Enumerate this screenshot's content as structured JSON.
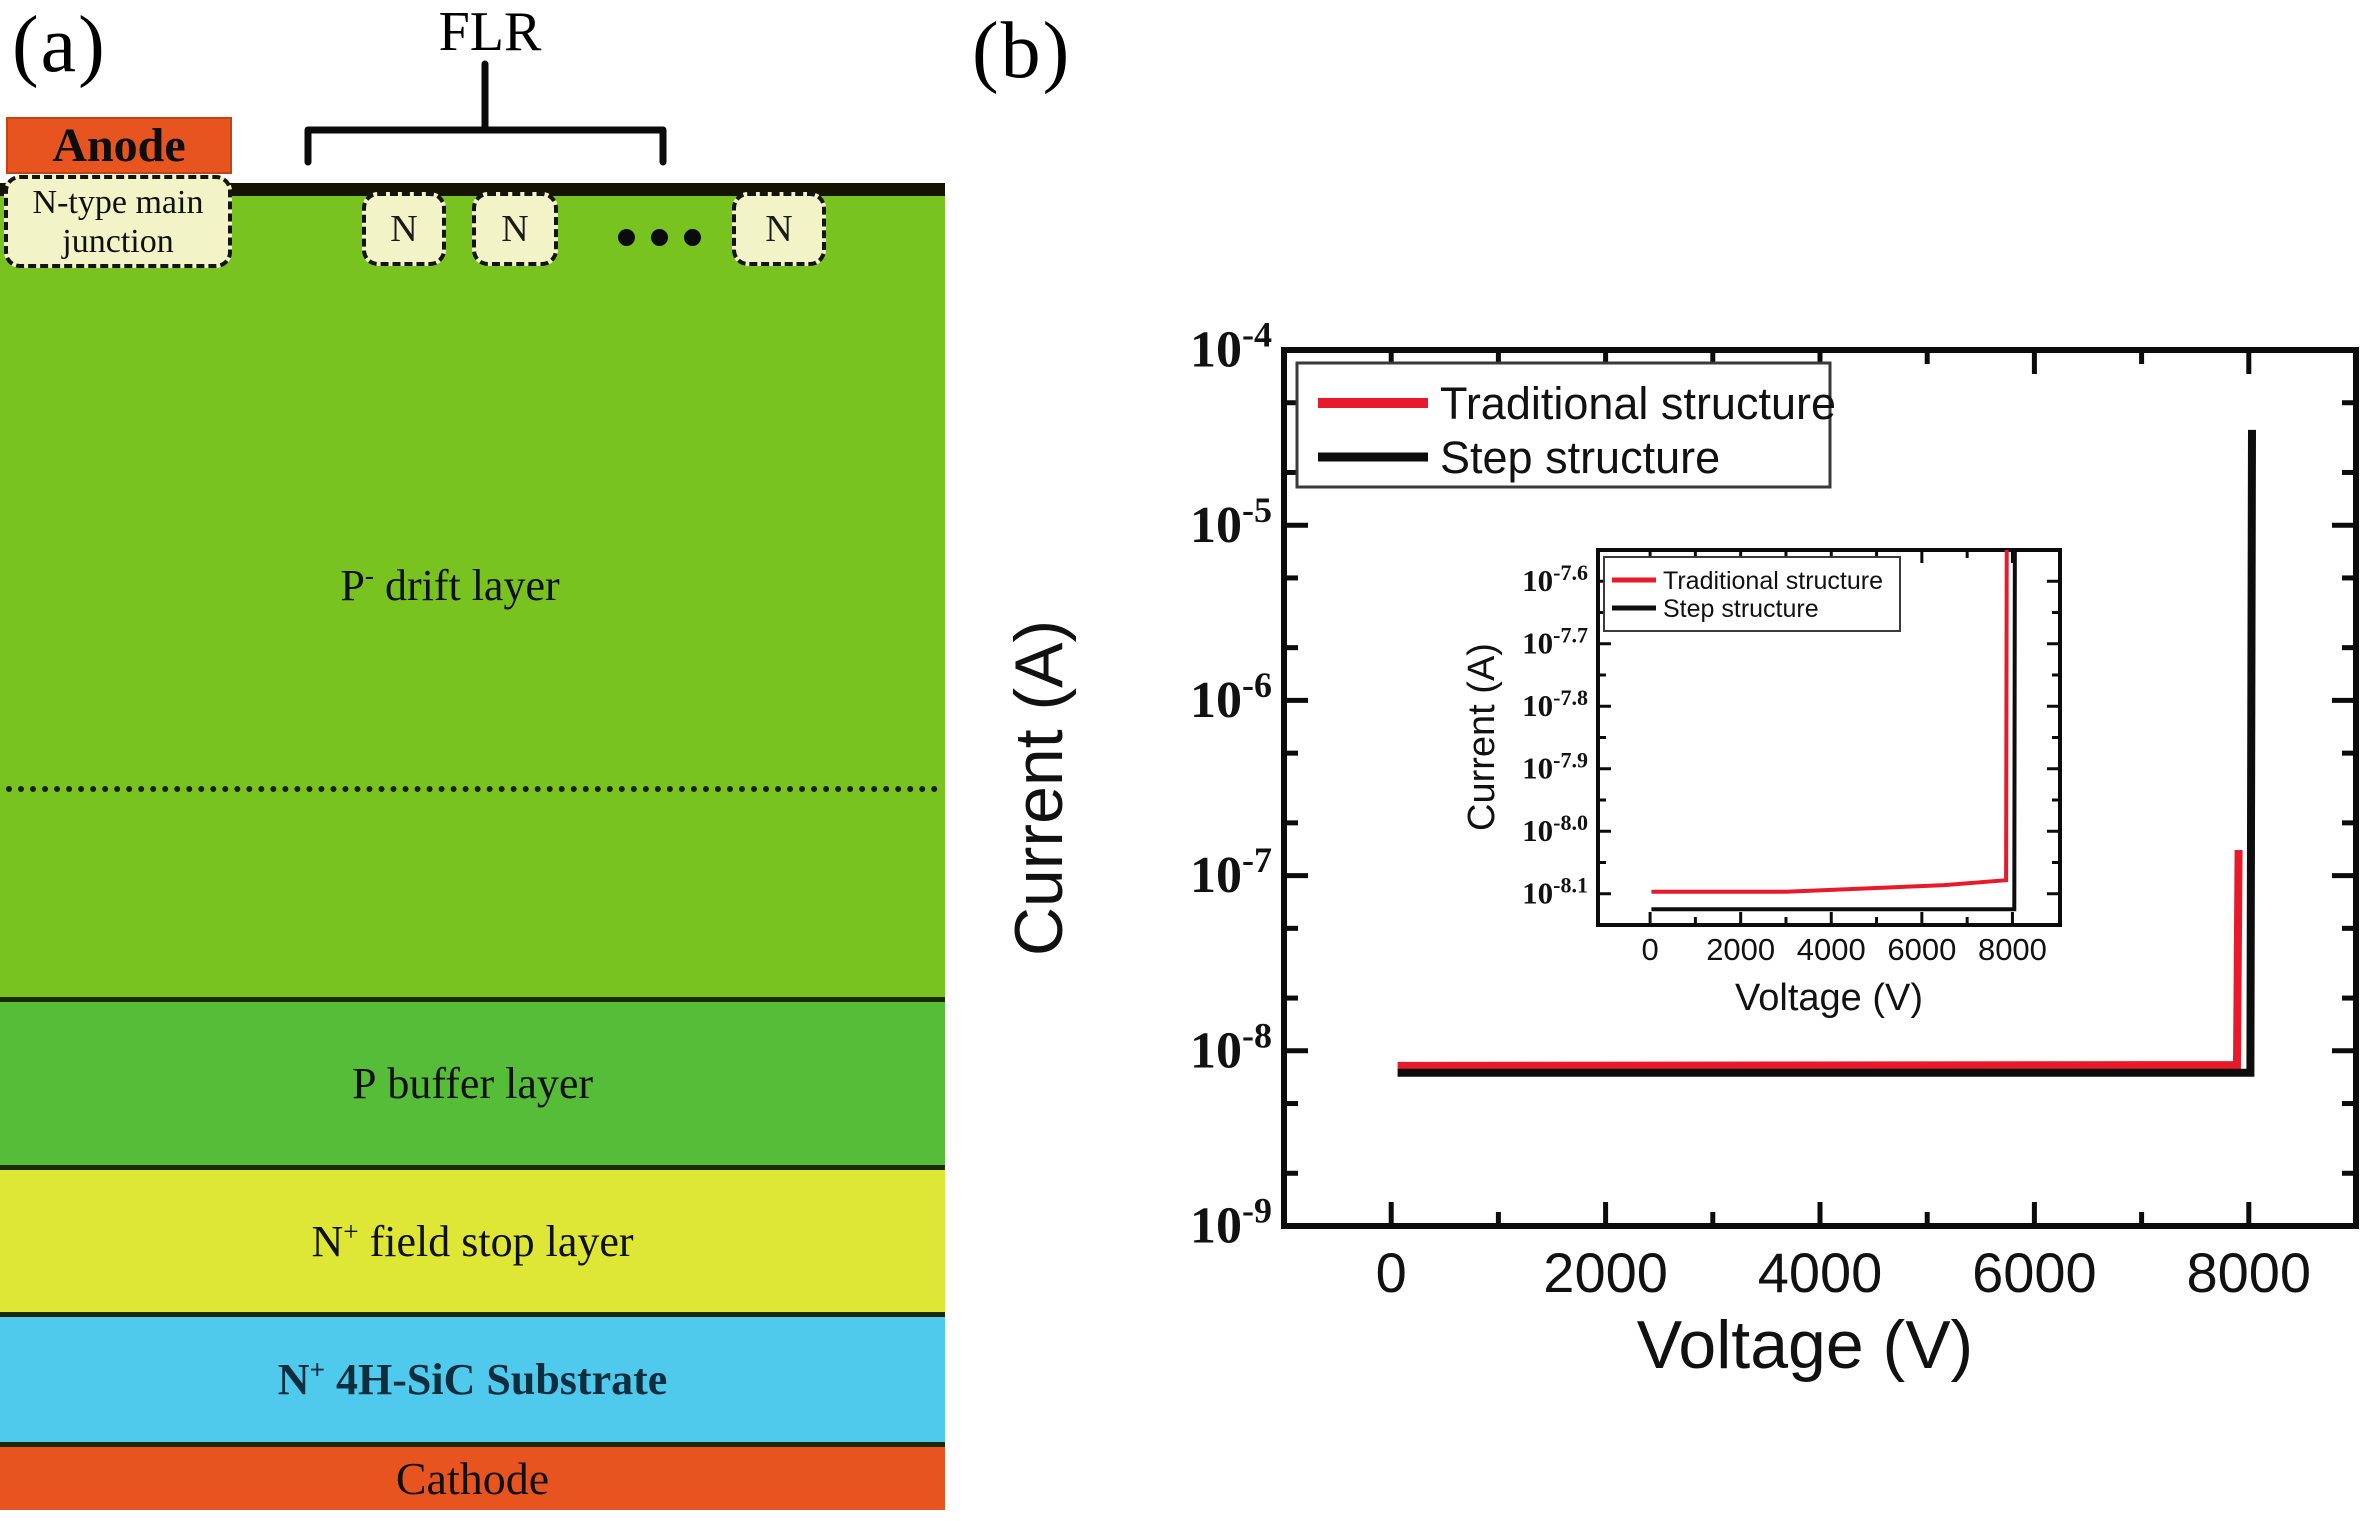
{
  "figure_labels": {
    "panel_a": "(a)",
    "panel_b": "(b)"
  },
  "panel_a": {
    "flr_label": "FLR",
    "anode_label": "Anode",
    "junction_lines": [
      "N-type main",
      "junction"
    ],
    "ring_label": "N",
    "drift_label": {
      "pre": "P",
      "sup": "-",
      "post": " drift layer"
    },
    "layers": [
      {
        "name": "p-buffer",
        "pre": "P",
        "sup": "",
        "post": " buffer layer"
      },
      {
        "name": "n-field-stop",
        "pre": "N",
        "sup": "+",
        "post": " field stop layer"
      },
      {
        "name": "n-substrate",
        "pre": "N",
        "sup": "+",
        "post": " 4H-SiC Substrate"
      },
      {
        "name": "cathode",
        "pre": "",
        "sup": "",
        "post": "Cathode"
      }
    ],
    "colors": {
      "drift": "#78c31f",
      "buffer": "#55bd38",
      "field_stop": "#dee636",
      "substrate": "#4fc9ec",
      "electrode": "#e8541f",
      "ring_fill": "#f2f3c6",
      "surface": "#141400",
      "boundary": "#1b2a00"
    }
  },
  "chart_data": [
    {
      "type": "line",
      "name": "main",
      "title": "",
      "xlabel": "Voltage (V)",
      "ylabel": "Current (A)",
      "xlim": [
        -1000,
        9000
      ],
      "x_ticks": [
        0,
        2000,
        4000,
        6000,
        8000
      ],
      "x_minor_ticks": [
        1000,
        3000,
        5000,
        7000
      ],
      "y_scale": "log",
      "ylim_exp": [
        -9,
        -4
      ],
      "y_ticks": [
        {
          "exp": -4,
          "label": "-4"
        },
        {
          "exp": -5,
          "label": "-5"
        },
        {
          "exp": -6,
          "label": "-6"
        },
        {
          "exp": -7,
          "label": "-7"
        },
        {
          "exp": -8,
          "label": "-8"
        },
        {
          "exp": -9,
          "label": "-9"
        }
      ],
      "y_minor_mode": "log25",
      "grid": false,
      "legend_position": "top-left",
      "series": [
        {
          "name": "Traditional structure",
          "color": "#e8192b",
          "width": 8,
          "points": [
            [
              60,
              8.2e-09
            ],
            [
              7890,
              8.3e-09
            ],
            [
              7905,
              1.4e-07
            ]
          ]
        },
        {
          "name": "Step structure",
          "color": "#0d0d0d",
          "width": 8,
          "points": [
            [
              60,
              7.5e-09
            ],
            [
              8015,
              7.5e-09
            ],
            [
              8030,
              3.5e-05
            ]
          ]
        }
      ]
    },
    {
      "type": "line",
      "name": "inset",
      "title": "",
      "xlabel": "Voltage (V)",
      "ylabel": "Current (A)",
      "xlim": [
        -1150,
        9050
      ],
      "x_ticks": [
        0,
        2000,
        4000,
        6000,
        8000
      ],
      "x_minor_ticks": [
        1000,
        3000,
        5000,
        7000
      ],
      "y_scale": "log",
      "ylim_exp": [
        -8.15,
        -7.55
      ],
      "y_ticks": [
        {
          "exp": -7.6,
          "label": "-7.6"
        },
        {
          "exp": -7.7,
          "label": "-7.7"
        },
        {
          "exp": -7.8,
          "label": "-7.8"
        },
        {
          "exp": -7.9,
          "label": "-7.9"
        },
        {
          "exp": -8.0,
          "label": "-8.0"
        },
        {
          "exp": -8.1,
          "label": "-8.1"
        }
      ],
      "y_minor_mode": "half",
      "grid": false,
      "legend_position": "top-left",
      "series": [
        {
          "name": "Traditional structure",
          "color": "#e8192b",
          "width": 4,
          "points": [
            [
              30,
              8e-09
            ],
            [
              3000,
              8e-09
            ],
            [
              4800,
              8.1e-09
            ],
            [
              6500,
              8.2e-09
            ],
            [
              7860,
              8.35e-09
            ],
            [
              7878,
              4e-08
            ]
          ]
        },
        {
          "name": "Step structure",
          "color": "#0d0d0d",
          "width": 4,
          "points": [
            [
              30,
              7.5e-09
            ],
            [
              8040,
              7.5e-09
            ],
            [
              8056,
              4e-08
            ]
          ]
        }
      ]
    }
  ]
}
